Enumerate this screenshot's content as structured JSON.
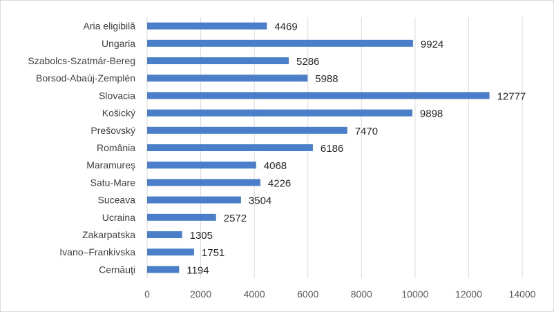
{
  "chart_data": {
    "type": "bar",
    "orientation": "horizontal",
    "categories": [
      "Aria eligibilă",
      "Ungaria",
      "Szabolcs-Szatmár-Bereg",
      "Borsod-Abaúj-Zemplén",
      "Slovacia",
      "Košický",
      "Prešovský",
      "România",
      "Maramureş",
      "Satu-Mare",
      "Suceava",
      "Ucraina",
      "Zakarpatska",
      "Ivano–Frankivska",
      "Cernăuţi"
    ],
    "values": [
      4469,
      9924,
      5286,
      5988,
      12777,
      9898,
      7470,
      6186,
      4068,
      4226,
      3504,
      2572,
      1305,
      1751,
      1194
    ],
    "xlim": [
      0,
      14000
    ],
    "xticks": [
      0,
      2000,
      4000,
      6000,
      8000,
      10000,
      12000,
      14000
    ],
    "grid": true,
    "bar_color": "#4a7ec9",
    "grid_color": "#d9d9d9"
  }
}
